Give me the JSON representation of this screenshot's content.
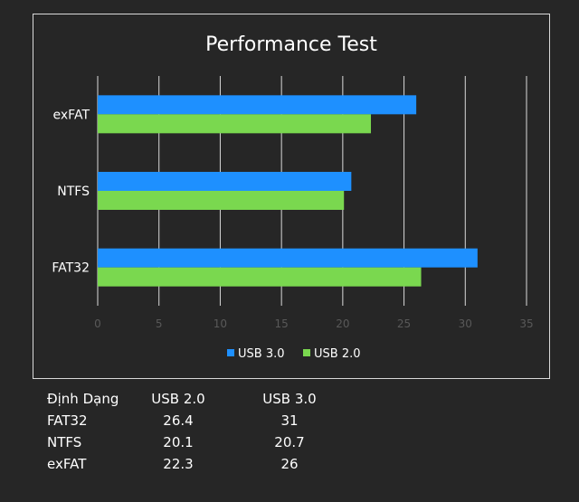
{
  "chart_data": {
    "type": "bar",
    "orientation": "horizontal",
    "title": "Performance Test",
    "categories": [
      "exFAT",
      "NTFS",
      "FAT32"
    ],
    "series": [
      {
        "name": "USB 3.0",
        "color": "#1e90ff",
        "values": [
          26,
          20.7,
          31
        ]
      },
      {
        "name": "USB 2.0",
        "color": "#7ad84f",
        "values": [
          22.3,
          20.1,
          26.4
        ]
      }
    ],
    "xticks": [
      "0",
      "5",
      "10",
      "15",
      "20",
      "25",
      "30",
      "35"
    ],
    "xlim": [
      0,
      35
    ],
    "grid": true,
    "legend_position": "bottom"
  },
  "table": {
    "headers": [
      "Định Dạng",
      "USB 2.0",
      "USB 3.0"
    ],
    "rows": [
      [
        "FAT32",
        "26.4",
        "31"
      ],
      [
        "NTFS",
        "20.1",
        "20.7"
      ],
      [
        "exFAT",
        "22.3",
        "26"
      ]
    ]
  }
}
